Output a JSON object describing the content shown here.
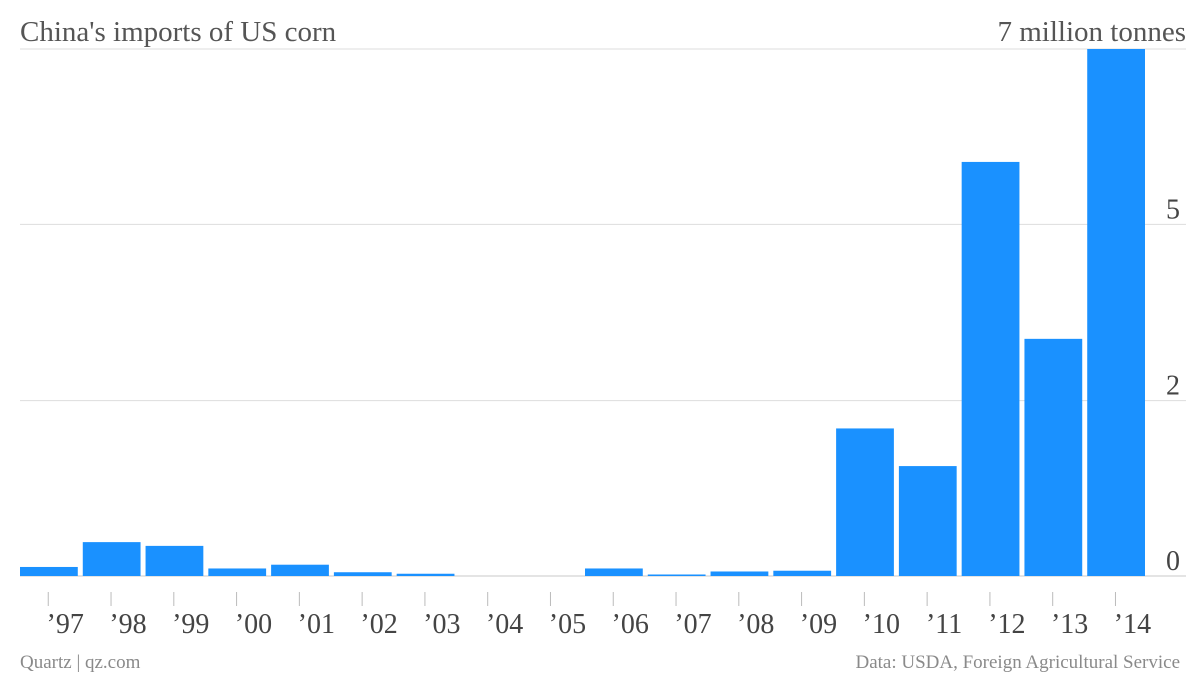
{
  "chart_data": {
    "type": "bar",
    "title": "China's imports of US corn",
    "unit_label": "7 million tonnes",
    "source": "Data: USDA, Foreign Agricultural Service",
    "credit": "Quartz | qz.com",
    "categories": [
      "’97",
      "’98",
      "’99",
      "’00",
      "’01",
      "’02",
      "’03",
      "’04",
      "’05",
      "’06",
      "’07",
      "’08",
      "’09",
      "’10",
      "’11",
      "’12",
      "’13",
      "’14"
    ],
    "values": [
      0.12,
      0.45,
      0.4,
      0.1,
      0.15,
      0.05,
      0.03,
      0.0,
      0.0,
      0.1,
      0.02,
      0.06,
      0.07,
      1.96,
      1.46,
      5.5,
      3.15,
      7.0
    ],
    "ylim": [
      0,
      7
    ],
    "y_ticks": [
      {
        "value": 0,
        "label": "0"
      },
      {
        "value": 2.33,
        "label": "2"
      },
      {
        "value": 4.67,
        "label": "5"
      }
    ],
    "grid": true,
    "bar_color": "#1a91ff"
  }
}
